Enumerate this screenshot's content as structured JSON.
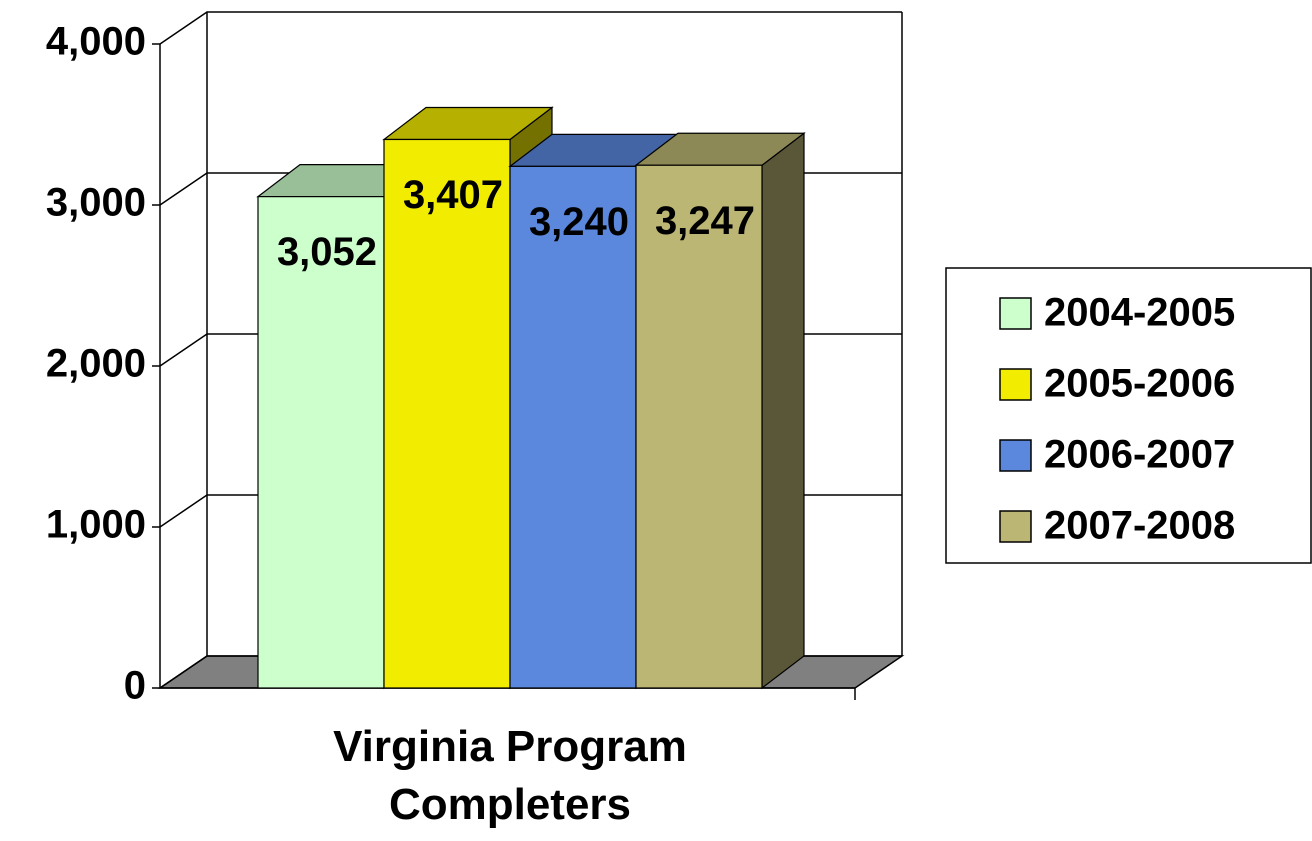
{
  "chart_data": {
    "type": "bar",
    "categories": [
      "Virginia Program Completers"
    ],
    "series": [
      {
        "name": "2004-2005",
        "color": "#ccffcc",
        "values": [
          3052
        ],
        "value_labels": [
          "3,052"
        ]
      },
      {
        "name": "2005-2006",
        "color": "#f2ec00",
        "values": [
          3407
        ],
        "value_labels": [
          "3,407"
        ]
      },
      {
        "name": "2006-2007",
        "color": "#5b87dc",
        "values": [
          3240
        ],
        "value_labels": [
          "3,240"
        ]
      },
      {
        "name": "2007-2008",
        "color": "#bcb674",
        "values": [
          3247
        ],
        "value_labels": [
          "3,247"
        ]
      }
    ],
    "ylim": [
      0,
      4000
    ],
    "yticks": [
      0,
      {
        "value": 1000,
        "label": "1,000"
      },
      {
        "value": 2000,
        "label": "2,000"
      },
      {
        "value": 3000,
        "label": "3,000"
      },
      {
        "value": 4000,
        "label": "4,000"
      }
    ],
    "grid": true,
    "legend": "right"
  }
}
